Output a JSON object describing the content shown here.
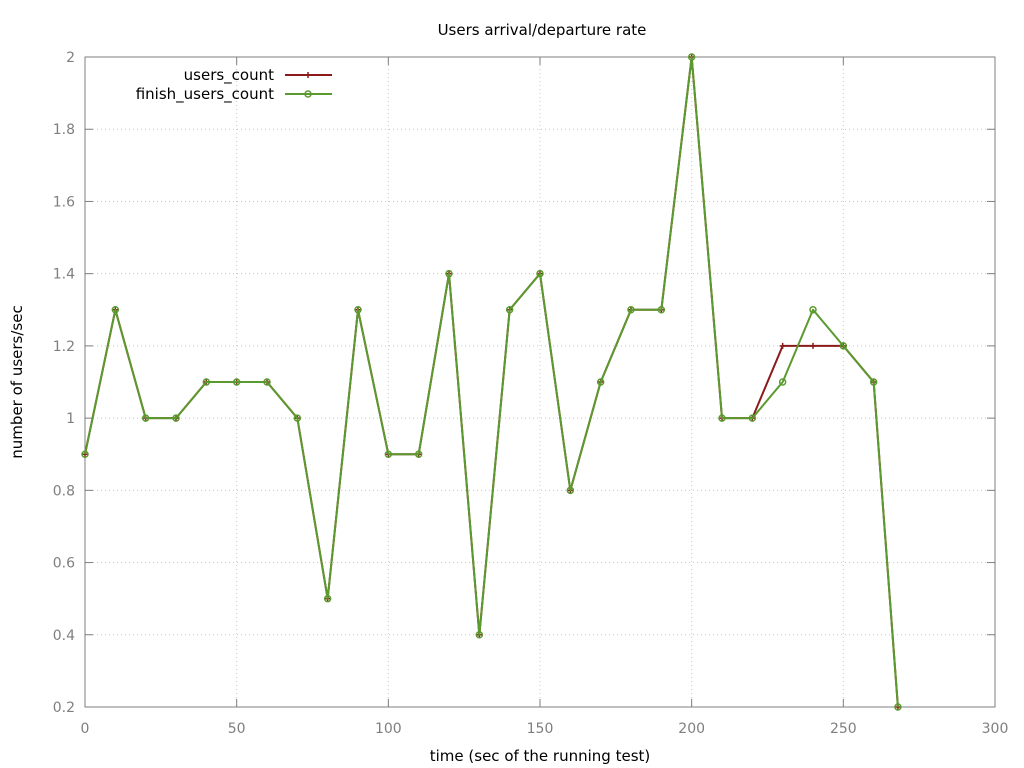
{
  "chart_data": {
    "type": "line",
    "title": "Users arrival/departure rate",
    "xlabel": "time (sec of the running test)",
    "ylabel": "number of users/sec",
    "xlim": [
      0,
      300
    ],
    "ylim": [
      0.2,
      2
    ],
    "x_ticks": [
      "0",
      "50",
      "100",
      "150",
      "200",
      "250",
      "300"
    ],
    "y_ticks": [
      "0.2",
      "0.4",
      "0.6",
      "0.8",
      "1",
      "1.2",
      "1.4",
      "1.6",
      "1.8",
      "2"
    ],
    "grid": true,
    "legend_position": "top-left",
    "series": [
      {
        "name": "users_count",
        "color": "#8b1a1a",
        "marker": "plus",
        "x": [
          0,
          10,
          20,
          30,
          40,
          50,
          60,
          70,
          80,
          90,
          100,
          110,
          120,
          130,
          140,
          150,
          160,
          170,
          180,
          190,
          200,
          210,
          220,
          230,
          240,
          250,
          260,
          268
        ],
        "values": [
          0.9,
          1.3,
          1.0,
          1.0,
          1.1,
          1.1,
          1.1,
          1.0,
          0.5,
          1.3,
          0.9,
          0.9,
          1.4,
          0.4,
          1.3,
          1.4,
          0.8,
          1.1,
          1.3,
          1.3,
          2.0,
          1.0,
          1.0,
          1.2,
          1.2,
          1.2,
          1.1,
          0.2
        ]
      },
      {
        "name": "finish_users_count",
        "color": "#5a9a2e",
        "marker": "circle",
        "x": [
          0,
          10,
          20,
          30,
          40,
          50,
          60,
          70,
          80,
          90,
          100,
          110,
          120,
          130,
          140,
          150,
          160,
          170,
          180,
          190,
          200,
          210,
          220,
          230,
          240,
          250,
          260,
          268
        ],
        "values": [
          0.9,
          1.3,
          1.0,
          1.0,
          1.1,
          1.1,
          1.1,
          1.0,
          0.5,
          1.3,
          0.9,
          0.9,
          1.4,
          0.4,
          1.3,
          1.4,
          0.8,
          1.1,
          1.3,
          1.3,
          2.0,
          1.0,
          1.0,
          1.1,
          1.3,
          1.2,
          1.1,
          0.2
        ]
      }
    ]
  }
}
